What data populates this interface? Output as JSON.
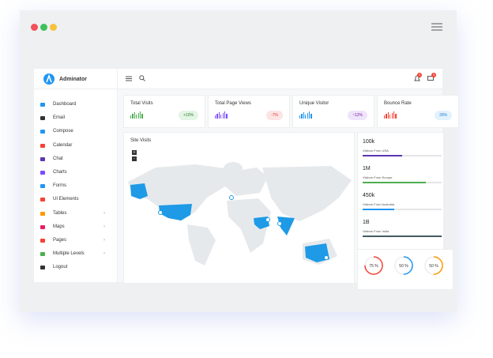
{
  "window": {
    "brand": "Adminator",
    "badges": [
      "3",
      "3"
    ]
  },
  "sidebar": {
    "items": [
      "Dashboard",
      "Email",
      "Compose",
      "Calendar",
      "Chat",
      "Charts",
      "Forms",
      "UI Elements",
      "Tables",
      "Maps",
      "Pages",
      "Multiple Levels",
      "Logout"
    ]
  },
  "cards": [
    {
      "title": "Total Visits",
      "change": "+10%"
    },
    {
      "title": "Total Page Views",
      "change": "-7%"
    },
    {
      "title": "Unique Visitor",
      "change": "~12%"
    },
    {
      "title": "Bounce Rate",
      "change": "33%"
    }
  ],
  "map": {
    "title": "Site Visits",
    "zoom": [
      "+",
      "-"
    ]
  },
  "stats": [
    {
      "value": "100k",
      "label": "Visitors From USA",
      "progress": 50,
      "color": "#5e35b1"
    },
    {
      "value": "1M",
      "label": "Visitors From Europe",
      "progress": 80,
      "color": "#4caf50"
    },
    {
      "value": "450k",
      "label": "Visitors From Australia",
      "progress": 40,
      "color": "#2196f3"
    },
    {
      "value": "1B",
      "label": "Visitors From India",
      "progress": 100,
      "color": "#455a64"
    }
  ],
  "gauges": [
    {
      "value": 75,
      "label": "75 %",
      "color": "#f44336"
    },
    {
      "value": 50,
      "label": "50 %",
      "color": "#2196f3"
    },
    {
      "value": 50,
      "label": "50 %",
      "color": "#ff9800"
    }
  ]
}
